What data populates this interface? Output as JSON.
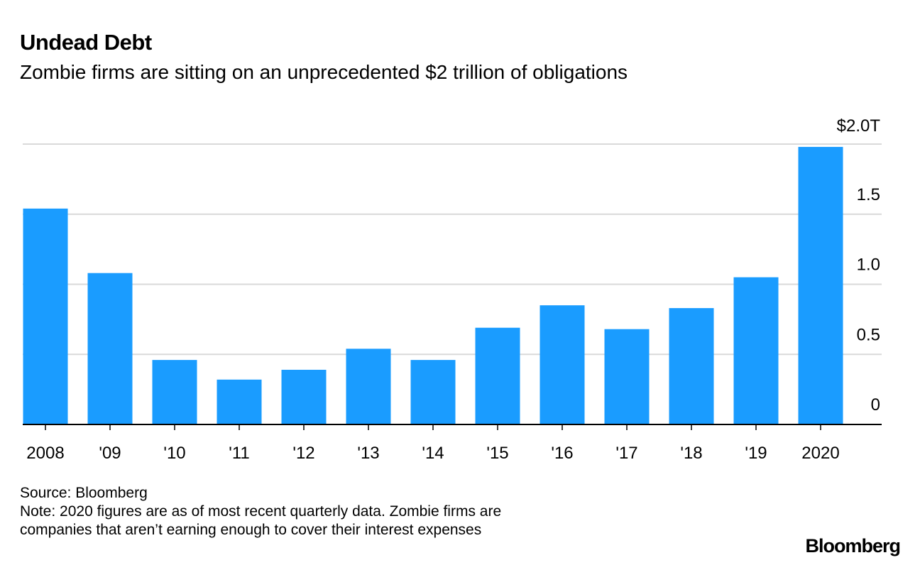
{
  "chart_data": {
    "type": "bar",
    "title": "Undead Debt",
    "subtitle": "Zombie firms are sitting on an unprecedented $2 trillion of obligations",
    "categories": [
      "2008",
      "'09",
      "'10",
      "'11",
      "'12",
      "'13",
      "'14",
      "'15",
      "'16",
      "'17",
      "'18",
      "'19",
      "2020"
    ],
    "values": [
      1.54,
      1.08,
      0.46,
      0.32,
      0.39,
      0.54,
      0.46,
      0.69,
      0.85,
      0.68,
      0.83,
      1.05,
      1.98
    ],
    "unit": "trillion USD",
    "xlabel": "",
    "ylabel": "",
    "ylim": [
      0,
      2.0
    ],
    "yticks": [
      0,
      0.5,
      1.0,
      1.5,
      2.0
    ],
    "ytick_labels": [
      "0",
      "0.5",
      "1.0",
      "1.5",
      "$2.0T"
    ],
    "grid": true,
    "y_axis_position": "right",
    "bar_color": "#1a9cff"
  },
  "footer": {
    "source": "Source: Bloomberg",
    "note_line1": "Note: 2020 figures are as of most recent quarterly data. Zombie firms are",
    "note_line2": "companies that aren’t earning enough to cover their interest expenses"
  },
  "logo": "Bloomberg"
}
